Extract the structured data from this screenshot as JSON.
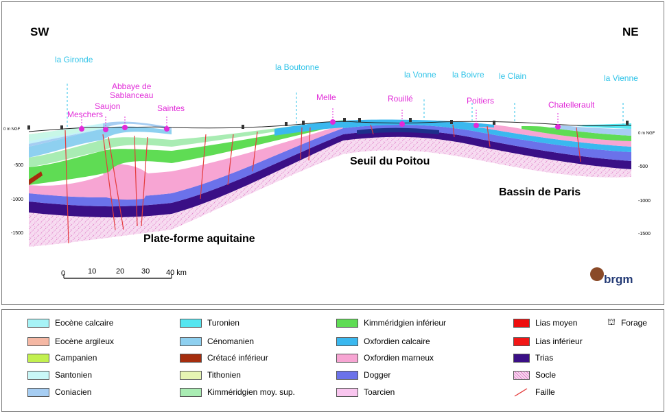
{
  "directions": {
    "sw": "SW",
    "ne": "NE"
  },
  "rivers": [
    {
      "label": "la Gironde"
    },
    {
      "label": "la Boutonne"
    },
    {
      "label": "la Vonne"
    },
    {
      "label": "la Boivre"
    },
    {
      "label": "le Clain"
    },
    {
      "label": "la Vienne"
    }
  ],
  "towns": [
    {
      "label": "Meschers"
    },
    {
      "label": "Saujon"
    },
    {
      "label": "Abbaye de\nSablanceau"
    },
    {
      "label": "Saintes"
    },
    {
      "label": "Melle"
    },
    {
      "label": "Rouillé"
    },
    {
      "label": "Poitiers"
    },
    {
      "label": "Chatellerault"
    }
  ],
  "regions": {
    "plateforme": "Plate-forme  aquitaine",
    "seuil": "Seuil du Poitou",
    "bassin": "Bassin de Paris"
  },
  "depth_axis": {
    "left": [
      "0 m NGF",
      "-500",
      "-1000",
      "-1500"
    ],
    "right": [
      "0 m NGF",
      "-500",
      "-1000",
      "-1500"
    ]
  },
  "scale_bar": {
    "ticks": [
      "0",
      "10",
      "20",
      "30",
      "40 km"
    ]
  },
  "logo": {
    "text": "brgm"
  },
  "colors": {
    "town_marker": "#e12ad8",
    "river_line": "#2fc3e8",
    "fault": "#e43b3b"
  },
  "legend": [
    {
      "label": "Eocène calcaire",
      "color": "#a7f3f6",
      "col": 0
    },
    {
      "label": "Eocène argileux",
      "color": "#f5b8a4",
      "col": 0
    },
    {
      "label": "Campanien",
      "color": "#c2f04f",
      "col": 0
    },
    {
      "label": "Santonien",
      "color": "#c9f7f7",
      "col": 0
    },
    {
      "label": "Coniacien",
      "color": "#a6cdf2",
      "col": 0
    },
    {
      "label": "Turonien",
      "color": "#55e6f0",
      "col": 1
    },
    {
      "label": "Cénomanien",
      "color": "#8ed0f0",
      "col": 1
    },
    {
      "label": "Crétacé inférieur",
      "color": "#a52d0e",
      "col": 1
    },
    {
      "label": "Tithonien",
      "color": "#e6f5b3",
      "col": 1
    },
    {
      "label": "Kimméridgien moy. sup.",
      "color": "#a9ecb3",
      "col": 1
    },
    {
      "label": "Kimméridgien inférieur",
      "color": "#5fdc54",
      "col": 2
    },
    {
      "label": "Oxfordien calcaire",
      "color": "#3ab8ef",
      "col": 2
    },
    {
      "label": "Oxfordien marneux",
      "color": "#f7a5d3",
      "col": 2
    },
    {
      "label": "Dogger",
      "color": "#6b72ea",
      "col": 2
    },
    {
      "label": "Toarcien",
      "color": "#f9c6ef",
      "col": 2
    },
    {
      "label": "Lias moyen",
      "color": "#ee0d0d",
      "col": 3
    },
    {
      "label": "Lias inférieur",
      "color": "#f21616",
      "col": 3
    },
    {
      "label": "Trias",
      "color": "#3a0f86",
      "col": 3
    },
    {
      "label": "Socle",
      "color": "#f7d9f0",
      "col": 3
    },
    {
      "label": "Faille",
      "color": "#e43b3b",
      "col": 3
    },
    {
      "label": "Forage",
      "color": "#000000",
      "col": 4
    }
  ]
}
